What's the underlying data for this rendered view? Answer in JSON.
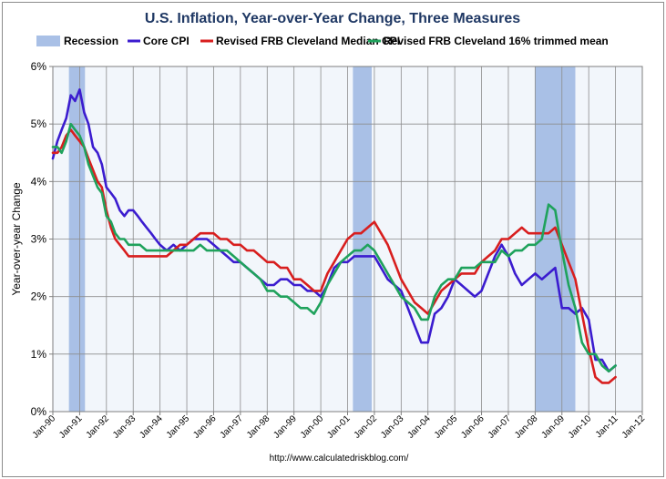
{
  "chart_data": {
    "type": "line",
    "title": "U.S. Inflation, Year-over-Year Change, Three Measures",
    "ylabel": "Year-over-year Change",
    "xlabel": "",
    "ylim": [
      0,
      6
    ],
    "y_tick_labels": [
      "0%",
      "1%",
      "2%",
      "3%",
      "4%",
      "5%",
      "6%"
    ],
    "x_range": [
      1990.0,
      2012.0
    ],
    "x_tick_labels": [
      "Jan-90",
      "Jan-91",
      "Jan-92",
      "Jan-93",
      "Jan-94",
      "Jan-95",
      "Jan-96",
      "Jan-97",
      "Jan-98",
      "Jan-99",
      "Jan-00",
      "Jan-01",
      "Jan-02",
      "Jan-03",
      "Jan-04",
      "Jan-05",
      "Jan-06",
      "Jan-07",
      "Jan-08",
      "Jan-09",
      "Jan-10",
      "Jan-11",
      "Jan-12"
    ],
    "grid": true,
    "legend_position": "top",
    "recession_label": "Recession",
    "recession_color": "#a9c0e6",
    "recessions": [
      [
        1990.6,
        1991.2
      ],
      [
        2001.2,
        2001.9
      ],
      [
        2008.0,
        2009.5
      ]
    ],
    "series": [
      {
        "name": "Core CPI",
        "color": "#3b1ccf",
        "points": [
          [
            1990.0,
            4.4
          ],
          [
            1990.17,
            4.7
          ],
          [
            1990.33,
            4.9
          ],
          [
            1990.5,
            5.1
          ],
          [
            1990.67,
            5.5
          ],
          [
            1990.83,
            5.4
          ],
          [
            1991.0,
            5.6
          ],
          [
            1991.17,
            5.2
          ],
          [
            1991.33,
            5.0
          ],
          [
            1991.5,
            4.6
          ],
          [
            1991.67,
            4.5
          ],
          [
            1991.83,
            4.3
          ],
          [
            1992.0,
            3.9
          ],
          [
            1992.17,
            3.8
          ],
          [
            1992.33,
            3.7
          ],
          [
            1992.5,
            3.5
          ],
          [
            1992.67,
            3.4
          ],
          [
            1992.83,
            3.5
          ],
          [
            1993.0,
            3.5
          ],
          [
            1993.17,
            3.4
          ],
          [
            1993.33,
            3.3
          ],
          [
            1993.5,
            3.2
          ],
          [
            1993.67,
            3.1
          ],
          [
            1993.83,
            3.0
          ],
          [
            1994.0,
            2.9
          ],
          [
            1994.25,
            2.8
          ],
          [
            1994.5,
            2.9
          ],
          [
            1994.75,
            2.8
          ],
          [
            1995.0,
            2.9
          ],
          [
            1995.25,
            3.0
          ],
          [
            1995.5,
            3.0
          ],
          [
            1995.75,
            3.0
          ],
          [
            1996.0,
            2.9
          ],
          [
            1996.25,
            2.8
          ],
          [
            1996.5,
            2.7
          ],
          [
            1996.75,
            2.6
          ],
          [
            1997.0,
            2.6
          ],
          [
            1997.25,
            2.5
          ],
          [
            1997.5,
            2.4
          ],
          [
            1997.75,
            2.3
          ],
          [
            1998.0,
            2.2
          ],
          [
            1998.25,
            2.2
          ],
          [
            1998.5,
            2.3
          ],
          [
            1998.75,
            2.3
          ],
          [
            1999.0,
            2.2
          ],
          [
            1999.25,
            2.2
          ],
          [
            1999.5,
            2.1
          ],
          [
            1999.75,
            2.1
          ],
          [
            2000.0,
            2.0
          ],
          [
            2000.25,
            2.2
          ],
          [
            2000.5,
            2.5
          ],
          [
            2000.75,
            2.6
          ],
          [
            2001.0,
            2.6
          ],
          [
            2001.25,
            2.7
          ],
          [
            2001.5,
            2.7
          ],
          [
            2001.75,
            2.7
          ],
          [
            2002.0,
            2.7
          ],
          [
            2002.25,
            2.5
          ],
          [
            2002.5,
            2.3
          ],
          [
            2002.75,
            2.2
          ],
          [
            2003.0,
            2.1
          ],
          [
            2003.25,
            1.8
          ],
          [
            2003.5,
            1.5
          ],
          [
            2003.75,
            1.2
          ],
          [
            2004.0,
            1.2
          ],
          [
            2004.25,
            1.7
          ],
          [
            2004.5,
            1.8
          ],
          [
            2004.75,
            2.0
          ],
          [
            2005.0,
            2.3
          ],
          [
            2005.25,
            2.2
          ],
          [
            2005.5,
            2.1
          ],
          [
            2005.75,
            2.0
          ],
          [
            2006.0,
            2.1
          ],
          [
            2006.25,
            2.4
          ],
          [
            2006.5,
            2.7
          ],
          [
            2006.75,
            2.9
          ],
          [
            2007.0,
            2.7
          ],
          [
            2007.25,
            2.4
          ],
          [
            2007.5,
            2.2
          ],
          [
            2007.75,
            2.3
          ],
          [
            2008.0,
            2.4
          ],
          [
            2008.25,
            2.3
          ],
          [
            2008.5,
            2.4
          ],
          [
            2008.75,
            2.5
          ],
          [
            2009.0,
            1.8
          ],
          [
            2009.25,
            1.8
          ],
          [
            2009.5,
            1.7
          ],
          [
            2009.75,
            1.8
          ],
          [
            2010.0,
            1.6
          ],
          [
            2010.25,
            0.9
          ],
          [
            2010.5,
            0.9
          ],
          [
            2010.75,
            0.7
          ],
          [
            2011.0,
            0.8
          ]
        ]
      },
      {
        "name": "Revised FRB Cleveland Median CPI",
        "color": "#d81e1e",
        "points": [
          [
            1990.0,
            4.5
          ],
          [
            1990.17,
            4.5
          ],
          [
            1990.33,
            4.6
          ],
          [
            1990.5,
            4.8
          ],
          [
            1990.67,
            4.9
          ],
          [
            1990.83,
            4.8
          ],
          [
            1991.0,
            4.7
          ],
          [
            1991.17,
            4.6
          ],
          [
            1991.33,
            4.4
          ],
          [
            1991.5,
            4.2
          ],
          [
            1991.67,
            4.0
          ],
          [
            1991.83,
            3.9
          ],
          [
            1992.0,
            3.5
          ],
          [
            1992.17,
            3.2
          ],
          [
            1992.33,
            3.0
          ],
          [
            1992.5,
            2.9
          ],
          [
            1992.67,
            2.8
          ],
          [
            1992.83,
            2.7
          ],
          [
            1993.0,
            2.7
          ],
          [
            1993.25,
            2.7
          ],
          [
            1993.5,
            2.7
          ],
          [
            1993.75,
            2.7
          ],
          [
            1994.0,
            2.7
          ],
          [
            1994.25,
            2.7
          ],
          [
            1994.5,
            2.8
          ],
          [
            1994.75,
            2.9
          ],
          [
            1995.0,
            2.9
          ],
          [
            1995.25,
            3.0
          ],
          [
            1995.5,
            3.1
          ],
          [
            1995.75,
            3.1
          ],
          [
            1996.0,
            3.1
          ],
          [
            1996.25,
            3.0
          ],
          [
            1996.5,
            3.0
          ],
          [
            1996.75,
            2.9
          ],
          [
            1997.0,
            2.9
          ],
          [
            1997.25,
            2.8
          ],
          [
            1997.5,
            2.8
          ],
          [
            1997.75,
            2.7
          ],
          [
            1998.0,
            2.6
          ],
          [
            1998.25,
            2.6
          ],
          [
            1998.5,
            2.5
          ],
          [
            1998.75,
            2.5
          ],
          [
            1999.0,
            2.3
          ],
          [
            1999.25,
            2.3
          ],
          [
            1999.5,
            2.2
          ],
          [
            1999.75,
            2.1
          ],
          [
            2000.0,
            2.1
          ],
          [
            2000.25,
            2.4
          ],
          [
            2000.5,
            2.6
          ],
          [
            2000.75,
            2.8
          ],
          [
            2001.0,
            3.0
          ],
          [
            2001.25,
            3.1
          ],
          [
            2001.5,
            3.1
          ],
          [
            2001.75,
            3.2
          ],
          [
            2002.0,
            3.3
          ],
          [
            2002.25,
            3.1
          ],
          [
            2002.5,
            2.9
          ],
          [
            2002.75,
            2.6
          ],
          [
            2003.0,
            2.3
          ],
          [
            2003.25,
            2.1
          ],
          [
            2003.5,
            1.9
          ],
          [
            2003.75,
            1.8
          ],
          [
            2004.0,
            1.7
          ],
          [
            2004.25,
            1.9
          ],
          [
            2004.5,
            2.1
          ],
          [
            2004.75,
            2.2
          ],
          [
            2005.0,
            2.3
          ],
          [
            2005.25,
            2.4
          ],
          [
            2005.5,
            2.4
          ],
          [
            2005.75,
            2.4
          ],
          [
            2006.0,
            2.6
          ],
          [
            2006.25,
            2.7
          ],
          [
            2006.5,
            2.8
          ],
          [
            2006.75,
            3.0
          ],
          [
            2007.0,
            3.0
          ],
          [
            2007.25,
            3.1
          ],
          [
            2007.5,
            3.2
          ],
          [
            2007.75,
            3.1
          ],
          [
            2008.0,
            3.1
          ],
          [
            2008.25,
            3.1
          ],
          [
            2008.5,
            3.1
          ],
          [
            2008.75,
            3.2
          ],
          [
            2009.0,
            2.9
          ],
          [
            2009.25,
            2.6
          ],
          [
            2009.5,
            2.3
          ],
          [
            2009.75,
            1.7
          ],
          [
            2010.0,
            1.1
          ],
          [
            2010.25,
            0.6
          ],
          [
            2010.5,
            0.5
          ],
          [
            2010.75,
            0.5
          ],
          [
            2011.0,
            0.6
          ]
        ]
      },
      {
        "name": "Revised FRB Cleveland 16% trimmed mean",
        "color": "#1fa25c",
        "points": [
          [
            1990.0,
            4.6
          ],
          [
            1990.17,
            4.6
          ],
          [
            1990.33,
            4.5
          ],
          [
            1990.5,
            4.7
          ],
          [
            1990.67,
            5.0
          ],
          [
            1990.83,
            4.9
          ],
          [
            1991.0,
            4.8
          ],
          [
            1991.17,
            4.6
          ],
          [
            1991.33,
            4.3
          ],
          [
            1991.5,
            4.1
          ],
          [
            1991.67,
            3.9
          ],
          [
            1991.83,
            3.8
          ],
          [
            1992.0,
            3.4
          ],
          [
            1992.17,
            3.3
          ],
          [
            1992.33,
            3.1
          ],
          [
            1992.5,
            3.0
          ],
          [
            1992.67,
            3.0
          ],
          [
            1992.83,
            2.9
          ],
          [
            1993.0,
            2.9
          ],
          [
            1993.25,
            2.9
          ],
          [
            1993.5,
            2.8
          ],
          [
            1993.75,
            2.8
          ],
          [
            1994.0,
            2.8
          ],
          [
            1994.25,
            2.8
          ],
          [
            1994.5,
            2.8
          ],
          [
            1994.75,
            2.8
          ],
          [
            1995.0,
            2.8
          ],
          [
            1995.25,
            2.8
          ],
          [
            1995.5,
            2.9
          ],
          [
            1995.75,
            2.8
          ],
          [
            1996.0,
            2.8
          ],
          [
            1996.25,
            2.8
          ],
          [
            1996.5,
            2.8
          ],
          [
            1996.75,
            2.7
          ],
          [
            1997.0,
            2.6
          ],
          [
            1997.25,
            2.5
          ],
          [
            1997.5,
            2.4
          ],
          [
            1997.75,
            2.3
          ],
          [
            1998.0,
            2.1
          ],
          [
            1998.25,
            2.1
          ],
          [
            1998.5,
            2.0
          ],
          [
            1998.75,
            2.0
          ],
          [
            1999.0,
            1.9
          ],
          [
            1999.25,
            1.8
          ],
          [
            1999.5,
            1.8
          ],
          [
            1999.75,
            1.7
          ],
          [
            2000.0,
            1.9
          ],
          [
            2000.25,
            2.2
          ],
          [
            2000.5,
            2.4
          ],
          [
            2000.75,
            2.6
          ],
          [
            2001.0,
            2.7
          ],
          [
            2001.25,
            2.8
          ],
          [
            2001.5,
            2.8
          ],
          [
            2001.75,
            2.9
          ],
          [
            2002.0,
            2.8
          ],
          [
            2002.25,
            2.6
          ],
          [
            2002.5,
            2.4
          ],
          [
            2002.75,
            2.2
          ],
          [
            2003.0,
            2.0
          ],
          [
            2003.25,
            1.9
          ],
          [
            2003.5,
            1.8
          ],
          [
            2003.75,
            1.6
          ],
          [
            2004.0,
            1.6
          ],
          [
            2004.25,
            2.0
          ],
          [
            2004.5,
            2.2
          ],
          [
            2004.75,
            2.3
          ],
          [
            2005.0,
            2.3
          ],
          [
            2005.25,
            2.5
          ],
          [
            2005.5,
            2.5
          ],
          [
            2005.75,
            2.5
          ],
          [
            2006.0,
            2.6
          ],
          [
            2006.25,
            2.6
          ],
          [
            2006.5,
            2.6
          ],
          [
            2006.75,
            2.8
          ],
          [
            2007.0,
            2.7
          ],
          [
            2007.25,
            2.8
          ],
          [
            2007.5,
            2.8
          ],
          [
            2007.75,
            2.9
          ],
          [
            2008.0,
            2.9
          ],
          [
            2008.25,
            3.0
          ],
          [
            2008.5,
            3.6
          ],
          [
            2008.75,
            3.5
          ],
          [
            2009.0,
            2.8
          ],
          [
            2009.25,
            2.2
          ],
          [
            2009.5,
            1.8
          ],
          [
            2009.75,
            1.2
          ],
          [
            2010.0,
            1.0
          ],
          [
            2010.25,
            1.0
          ],
          [
            2010.5,
            0.8
          ],
          [
            2010.75,
            0.7
          ],
          [
            2011.0,
            0.8
          ]
        ]
      }
    ],
    "source_note": "http://www.calculatedriskblog.com/"
  }
}
